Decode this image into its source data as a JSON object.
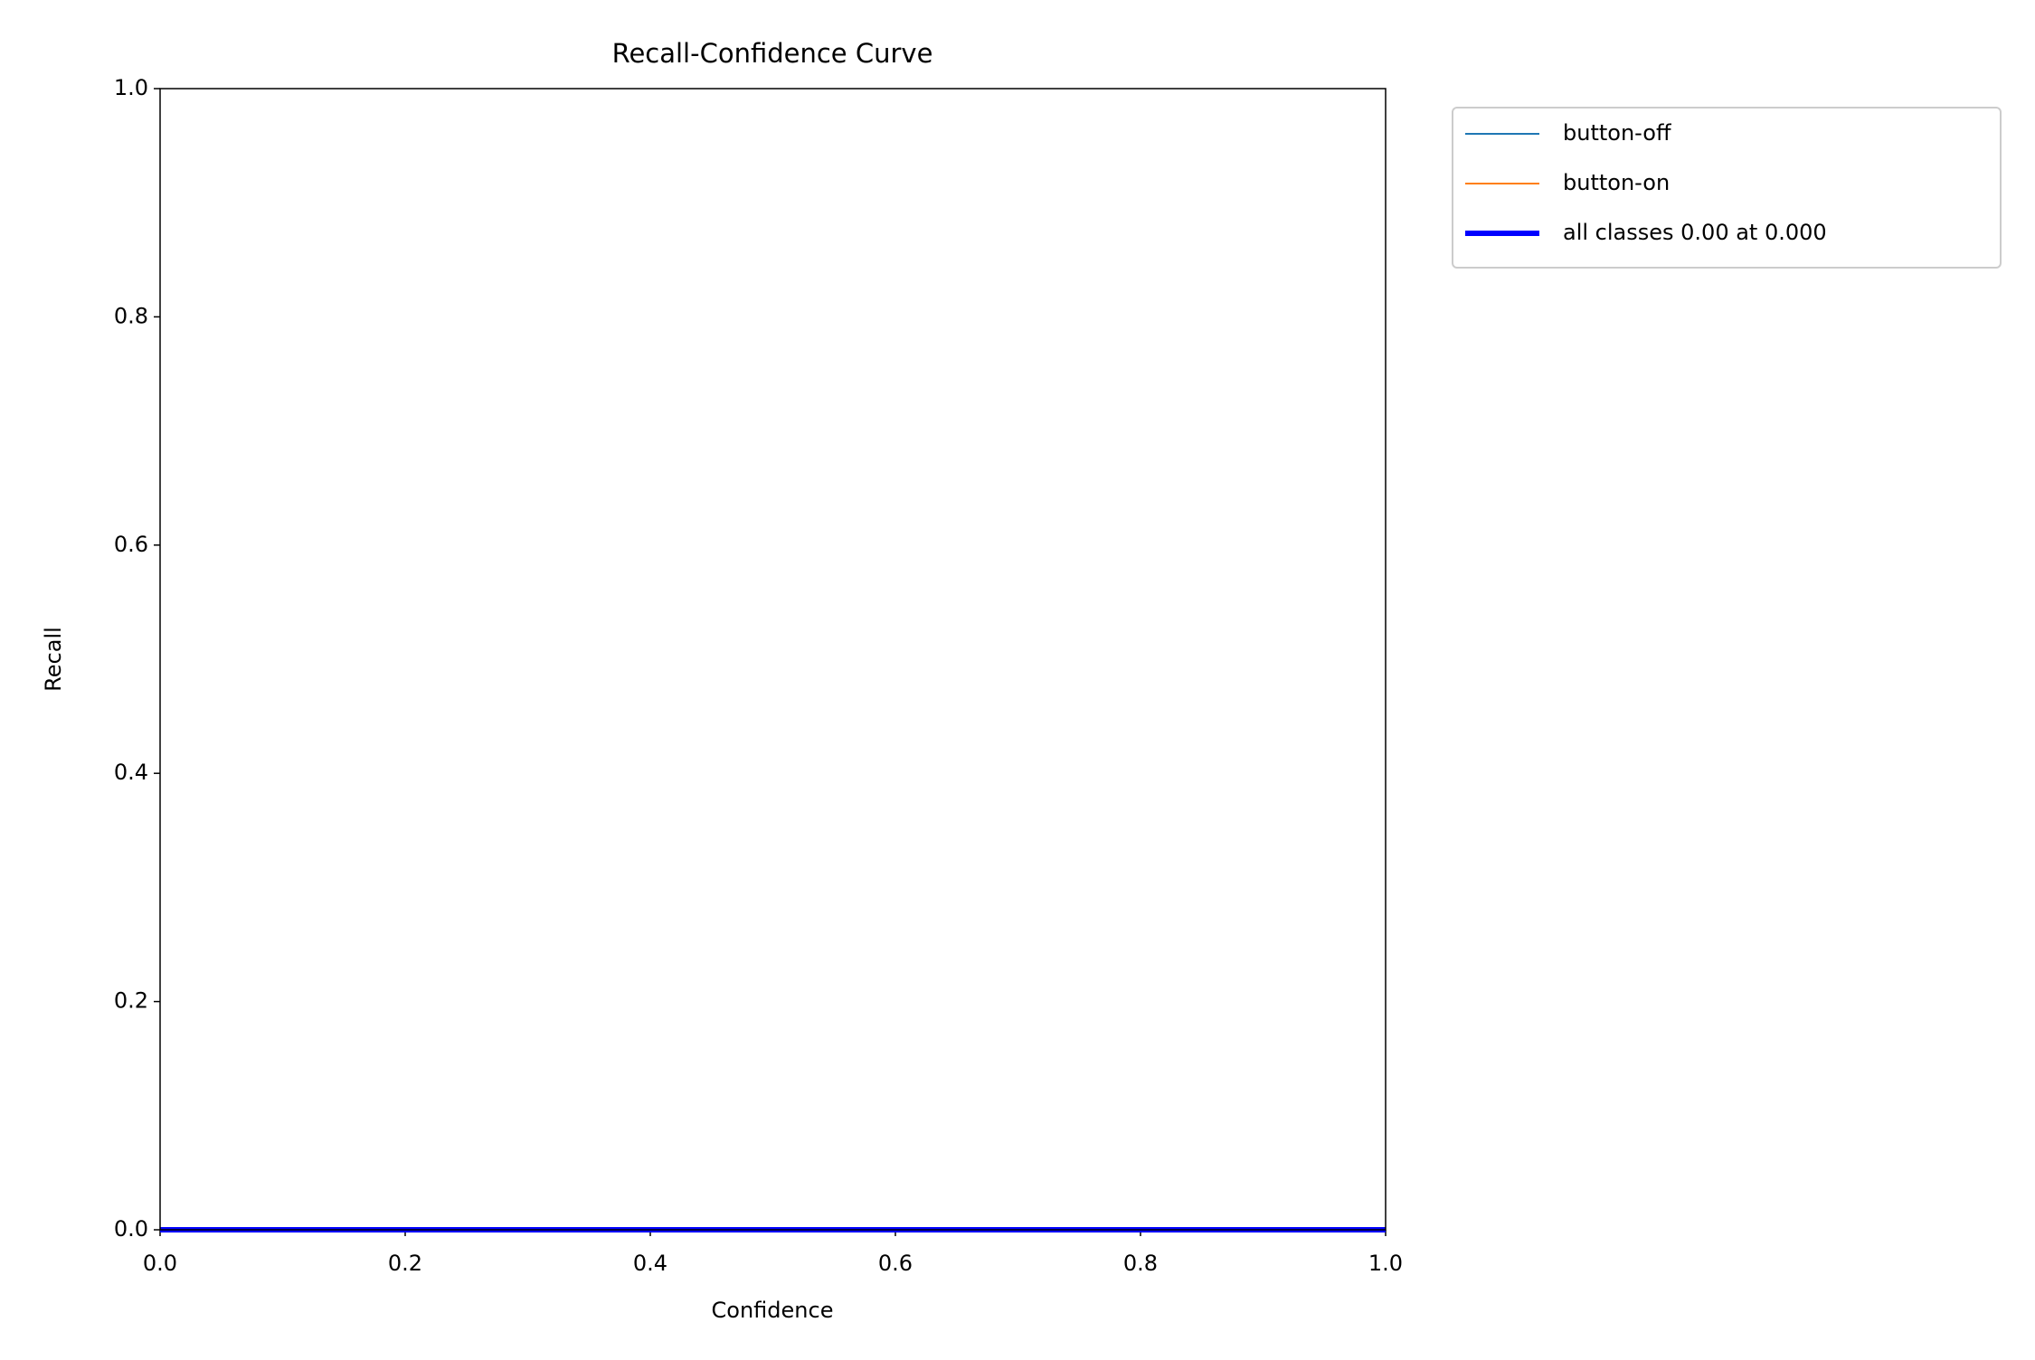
{
  "chart_data": {
    "type": "line",
    "title": "Recall-Confidence Curve",
    "xlabel": "Confidence",
    "ylabel": "Recall",
    "x": [
      0,
      1
    ],
    "series": [
      {
        "name": "button-off",
        "color": "#1f77b4",
        "width": "thin",
        "values": [
          0,
          0
        ]
      },
      {
        "name": "button-on",
        "color": "#ff7f0e",
        "width": "thin",
        "values": [
          0,
          0
        ]
      },
      {
        "name": "all classes 0.00 at 0.000",
        "color": "#0000ff",
        "width": "thick",
        "values": [
          0,
          0
        ]
      }
    ],
    "xlim": [
      0,
      1
    ],
    "ylim": [
      0,
      1
    ],
    "xticks": [
      {
        "value": 0,
        "label": "0.0"
      },
      0.2,
      0.4,
      0.6,
      0.8,
      {
        "value": 1,
        "label": "1.0"
      }
    ],
    "yticks": [
      {
        "value": 0,
        "label": "0.0"
      },
      0.2,
      0.4,
      0.6,
      0.8,
      {
        "value": 1,
        "label": "1.0"
      }
    ],
    "grid": false,
    "legend": "outside"
  }
}
